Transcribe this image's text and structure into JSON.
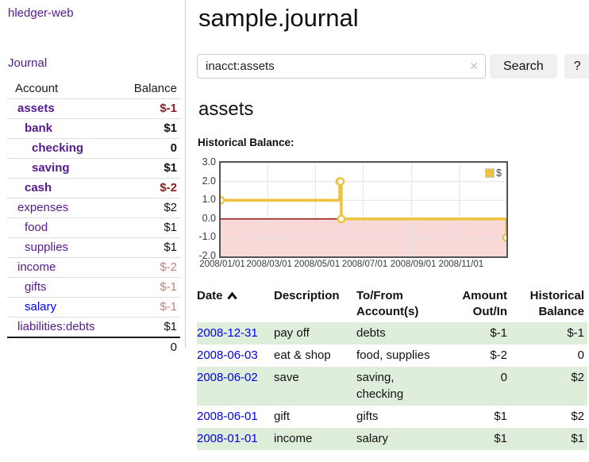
{
  "app": {
    "title": "hledger-web"
  },
  "sidebar": {
    "journal_label": "Journal",
    "header": {
      "account": "Account",
      "balance": "Balance"
    },
    "accounts": [
      {
        "name": "assets",
        "balance": "$-1"
      },
      {
        "name": "bank",
        "balance": "$1"
      },
      {
        "name": "checking",
        "balance": "0"
      },
      {
        "name": "saving",
        "balance": "$1"
      },
      {
        "name": "cash",
        "balance": "$-2"
      },
      {
        "name": "expenses",
        "balance": "$2"
      },
      {
        "name": "food",
        "balance": "$1"
      },
      {
        "name": "supplies",
        "balance": "$1"
      },
      {
        "name": "income",
        "balance": "$-2"
      },
      {
        "name": "gifts",
        "balance": "$-1"
      },
      {
        "name": "salary",
        "balance": "$-1"
      },
      {
        "name": "liabilities:debts",
        "balance": "$1"
      }
    ],
    "total": "0"
  },
  "main": {
    "title": "sample.journal",
    "search": {
      "value": "inacct:assets",
      "clear_icon": "✕",
      "button_label": "Search",
      "help_label": "?"
    },
    "account_heading": "assets",
    "chart_heading": "Historical Balance:"
  },
  "chart_data": {
    "type": "line",
    "title": "Historical Balance",
    "series_label": "$",
    "series_color": "#EDC240",
    "grid_color": "#e3e3e3",
    "zero_line_color": "#8b0000",
    "negative_region_color": "#f9d8d8",
    "legend_position": "top-right",
    "ylim": [
      -2,
      3
    ],
    "x_range_days": 365,
    "yticks": [
      3.0,
      2.0,
      1.0,
      0.0,
      -1.0,
      -2.0
    ],
    "xticks": [
      {
        "label": "2008/01/01",
        "day": 0
      },
      {
        "label": "2008/03/01",
        "day": 60
      },
      {
        "label": "2008/05/01",
        "day": 121
      },
      {
        "label": "2008/07/01",
        "day": 182
      },
      {
        "label": "2008/09/01",
        "day": 244
      },
      {
        "label": "2008/11/01",
        "day": 305
      }
    ],
    "points": [
      {
        "date": "2008-01-01",
        "day": 0,
        "value": 1
      },
      {
        "date": "2008-06-01",
        "day": 152,
        "value": 2
      },
      {
        "date": "2008-06-02",
        "day": 153,
        "value": 2
      },
      {
        "date": "2008-06-03",
        "day": 154,
        "value": 0
      },
      {
        "date": "2008-12-31",
        "day": 365,
        "value": -1
      }
    ]
  },
  "register": {
    "columns": [
      {
        "line1": "Date",
        "line2": ""
      },
      {
        "line1": "Description",
        "line2": ""
      },
      {
        "line1": "To/From",
        "line2": "Account(s)"
      },
      {
        "line1": "Amount",
        "line2": "Out/In"
      },
      {
        "line1": "Historical",
        "line2": "Balance"
      }
    ],
    "rows": [
      {
        "date": "2008-12-31",
        "description": "pay off",
        "accounts": "debts",
        "amount": "$-1",
        "balance": "$-1"
      },
      {
        "date": "2008-06-03",
        "description": "eat & shop",
        "accounts": "food, supplies",
        "amount": "$-2",
        "balance": "0"
      },
      {
        "date": "2008-06-02",
        "description": "save",
        "accounts": "saving,\nchecking",
        "amount": "0",
        "balance": "$2"
      },
      {
        "date": "2008-06-01",
        "description": "gift",
        "accounts": "gifts",
        "amount": "$1",
        "balance": "$2"
      },
      {
        "date": "2008-01-01",
        "description": "income",
        "accounts": "salary",
        "amount": "$1",
        "balance": "$1"
      }
    ]
  },
  "colors": {
    "link_purple": "#551A8B",
    "link_blue": "#0000EE",
    "negative_strong": "#8f1f1f",
    "negative_soft": "#c4827e",
    "row_stripe_green": "#dfeeda",
    "series_yellow": "#EDC240"
  }
}
